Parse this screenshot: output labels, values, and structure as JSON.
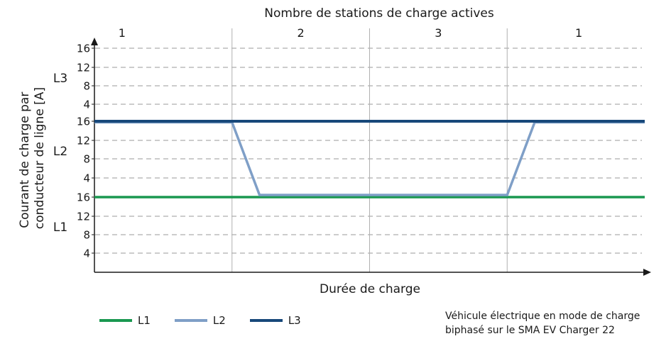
{
  "chart_data": {
    "type": "line",
    "top_axis_title": "Nombre de stations de charge actives",
    "top_axis_labels": [
      "1",
      "2",
      "3",
      "1"
    ],
    "xlabel": "Durée de charge",
    "ylabel_lines": [
      "Courant de charge par",
      "conducteur de ligne [A]"
    ],
    "ybands": [
      {
        "name": "L3",
        "ticks": [
          "16",
          "12",
          "8",
          "4"
        ]
      },
      {
        "name": "L2",
        "ticks": [
          "16",
          "12",
          "8",
          "4"
        ]
      },
      {
        "name": "L1",
        "ticks": [
          "16",
          "12",
          "8",
          "4"
        ]
      }
    ],
    "series": [
      {
        "name": "L1",
        "color": "#1a9850",
        "points": [
          [
            0,
            16
          ],
          [
            4,
            16
          ]
        ]
      },
      {
        "name": "L2",
        "color": "#7f9fc7",
        "points": [
          [
            0,
            16
          ],
          [
            1,
            16
          ],
          [
            1.2,
            0
          ],
          [
            3,
            0
          ],
          [
            3.2,
            16
          ],
          [
            4,
            16
          ]
        ]
      },
      {
        "name": "L3",
        "color": "#17487a",
        "points": [
          [
            0,
            16
          ],
          [
            4,
            16
          ]
        ]
      }
    ],
    "grid": "dashed horizontal, solid vertical phase separators",
    "legend_position": "bottom-left"
  },
  "legend": {
    "items": [
      {
        "label": "L1",
        "color": "#1a9850"
      },
      {
        "label": "L2",
        "color": "#7f9fc7"
      },
      {
        "label": "L3",
        "color": "#17487a"
      }
    ]
  },
  "note": {
    "line1": "Véhicule électrique en mode de charge",
    "line2": "biphasé sur le SMA EV Charger 22"
  }
}
